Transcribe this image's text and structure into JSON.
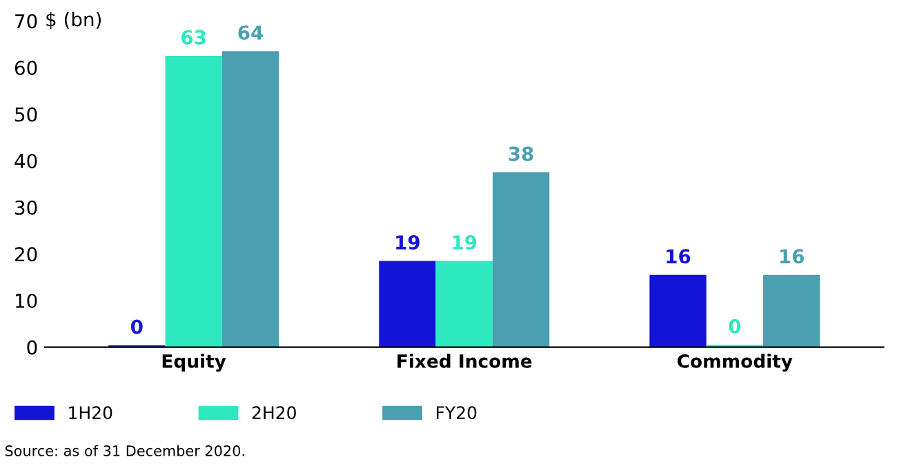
{
  "chart_data": {
    "type": "bar",
    "categories": [
      "Equity",
      "Fixed Income",
      "Commodity"
    ],
    "ylabel": "$ (bn)",
    "ylim": [
      0,
      70
    ],
    "yticks": [
      0,
      10,
      20,
      30,
      40,
      50,
      60,
      70
    ],
    "series": [
      {
        "name": "1H20",
        "color": "#1414d8",
        "values": [
          0.4,
          18.5,
          15.5
        ],
        "value_labels": [
          "0",
          "19",
          "16"
        ]
      },
      {
        "name": "2H20",
        "color": "#2ee8c0",
        "values": [
          62.5,
          18.5,
          0.5
        ],
        "value_labels": [
          "63",
          "19",
          "0"
        ]
      },
      {
        "name": "FY20",
        "color": "#4aa0b0",
        "values": [
          63.5,
          37.5,
          15.5
        ],
        "value_labels": [
          "64",
          "38",
          "16"
        ]
      }
    ],
    "legend": "bottom left",
    "grid": false,
    "annotations": [
      "Source: as of 31 December 2020."
    ]
  }
}
